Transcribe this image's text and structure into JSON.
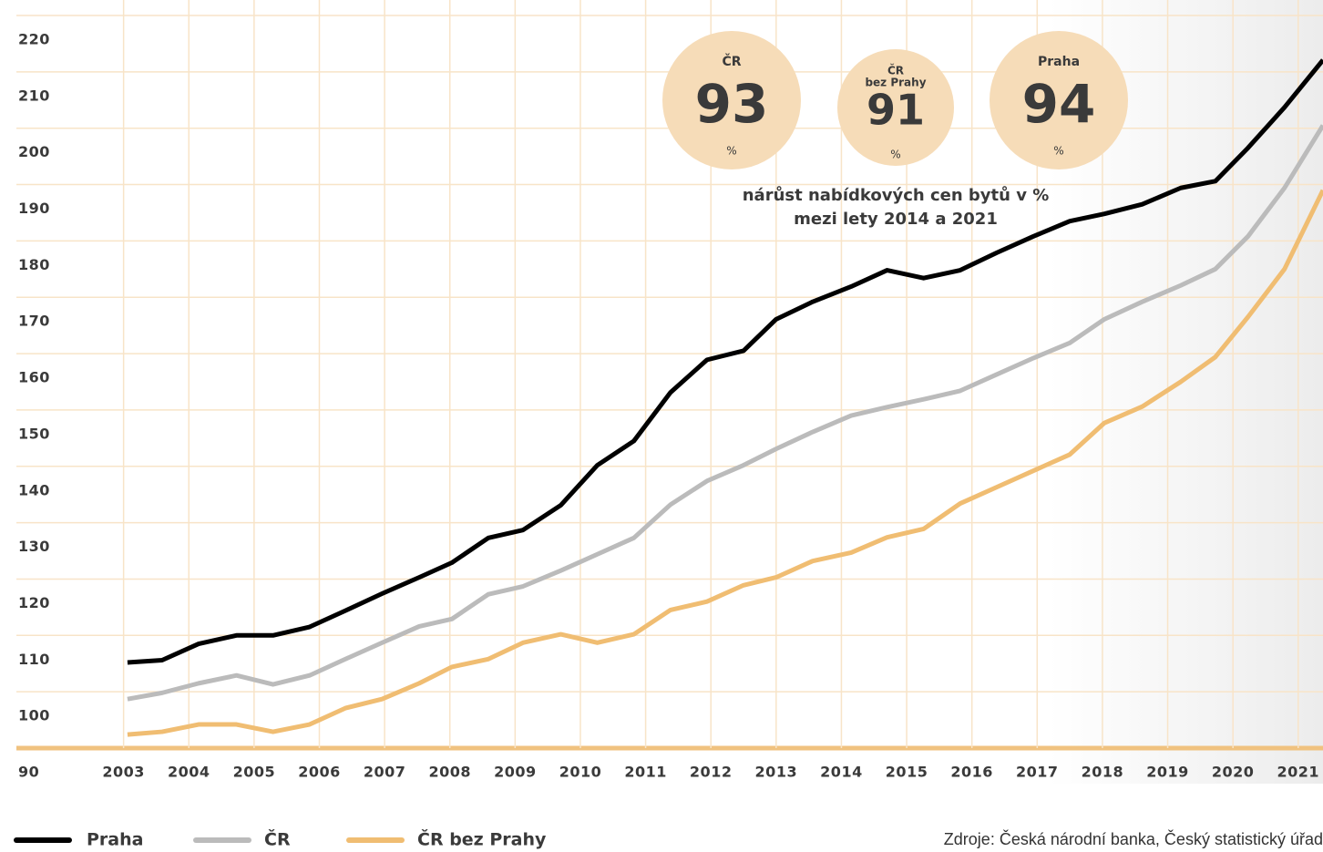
{
  "chart_data": {
    "type": "line",
    "x": [
      2003.06,
      2003.59,
      2004.15,
      2004.73,
      2005.29,
      2005.85,
      2006.4,
      2006.96,
      2007.53,
      2008.03,
      2008.59,
      2009.12,
      2009.7,
      2010.26,
      2010.82,
      2011.38,
      2011.94,
      2012.5,
      2013.0,
      2013.56,
      2014.15,
      2014.7,
      2015.26,
      2015.82,
      2016.38,
      2016.94,
      2017.5,
      2018.03,
      2018.61,
      2019.2,
      2019.73,
      2020.23,
      2020.79,
      2021.38
    ],
    "series": [
      {
        "name": "Praha",
        "color": "#000000",
        "values": [
          105.2,
          105.6,
          108.5,
          110.0,
          110.0,
          111.5,
          114.4,
          117.4,
          120.3,
          122.9,
          127.3,
          128.7,
          133.1,
          140.2,
          144.5,
          153.1,
          158.9,
          160.5,
          166.1,
          169.2,
          171.9,
          174.8,
          173.4,
          174.8,
          177.9,
          180.8,
          183.5,
          184.8,
          186.5,
          189.4,
          190.6,
          196.5,
          203.7,
          212.1
        ]
      },
      {
        "name": "ČR",
        "color": "#bbbbbb",
        "values": [
          98.7,
          99.8,
          101.5,
          102.9,
          101.3,
          102.9,
          105.8,
          108.7,
          111.6,
          112.9,
          117.3,
          118.7,
          121.5,
          124.4,
          127.3,
          133.2,
          137.4,
          140.2,
          143.1,
          146.1,
          149.0,
          150.5,
          151.9,
          153.4,
          156.3,
          159.2,
          161.9,
          166.1,
          169.2,
          172.1,
          175.0,
          180.8,
          189.4,
          200.5
        ]
      },
      {
        "name": "ČR bez Prahy",
        "color": "#f0bd72",
        "values": [
          92.4,
          92.9,
          94.2,
          94.2,
          92.9,
          94.2,
          97.1,
          98.7,
          101.5,
          104.4,
          105.8,
          108.7,
          110.2,
          108.7,
          110.2,
          114.5,
          116.0,
          118.9,
          120.3,
          123.2,
          124.7,
          127.4,
          128.9,
          133.4,
          136.3,
          139.2,
          142.1,
          147.7,
          150.6,
          155.0,
          159.4,
          166.5,
          175.0,
          189.0
        ]
      }
    ],
    "xlim": [
      2002,
      2021.38
    ],
    "xticks": [
      2003,
      2004,
      2005,
      2006,
      2007,
      2008,
      2009,
      2010,
      2011,
      2012,
      2013,
      2014,
      2015,
      2016,
      2017,
      2018,
      2019,
      2020,
      2021
    ],
    "ylim": [
      90,
      220
    ],
    "yticks": [
      90,
      100,
      110,
      120,
      130,
      140,
      150,
      160,
      170,
      180,
      190,
      200,
      210,
      220
    ],
    "grid": true,
    "callouts": [
      {
        "label": [
          "ČR"
        ],
        "value": 93,
        "unit": "%"
      },
      {
        "label": [
          "ČR",
          "bez Prahy"
        ],
        "value": 91,
        "unit": "%"
      },
      {
        "label": [
          "Praha"
        ],
        "value": 94,
        "unit": "%"
      }
    ],
    "caption": "nárůst nabídkových cen bytů v %",
    "caption_highlight": "mezi lety 2014 a 2021",
    "source": "Zdroje: Česká národní banka, Český statistický úřad"
  }
}
